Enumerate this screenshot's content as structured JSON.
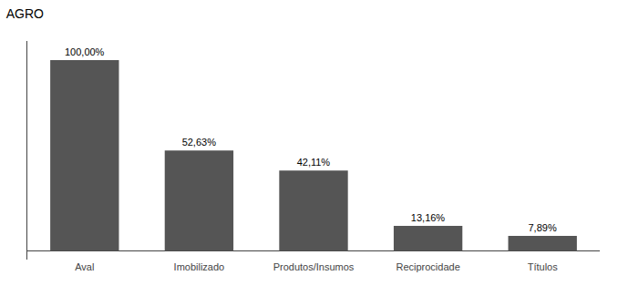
{
  "chart_data": {
    "type": "bar",
    "title": "AGRO",
    "categories": [
      "Aval",
      "Imobilizado",
      "Produtos/Insumos",
      "Reciprocidade",
      "Títulos"
    ],
    "values": [
      100.0,
      52.63,
      42.11,
      13.16,
      7.89
    ],
    "value_labels": [
      "100,00%",
      "52,63%",
      "42,11%",
      "13,16%",
      "7,89%"
    ],
    "data_labels": true,
    "color": "#555555",
    "ylim": [
      -4.5,
      110
    ],
    "grid": false,
    "tick_labels": "x"
  }
}
